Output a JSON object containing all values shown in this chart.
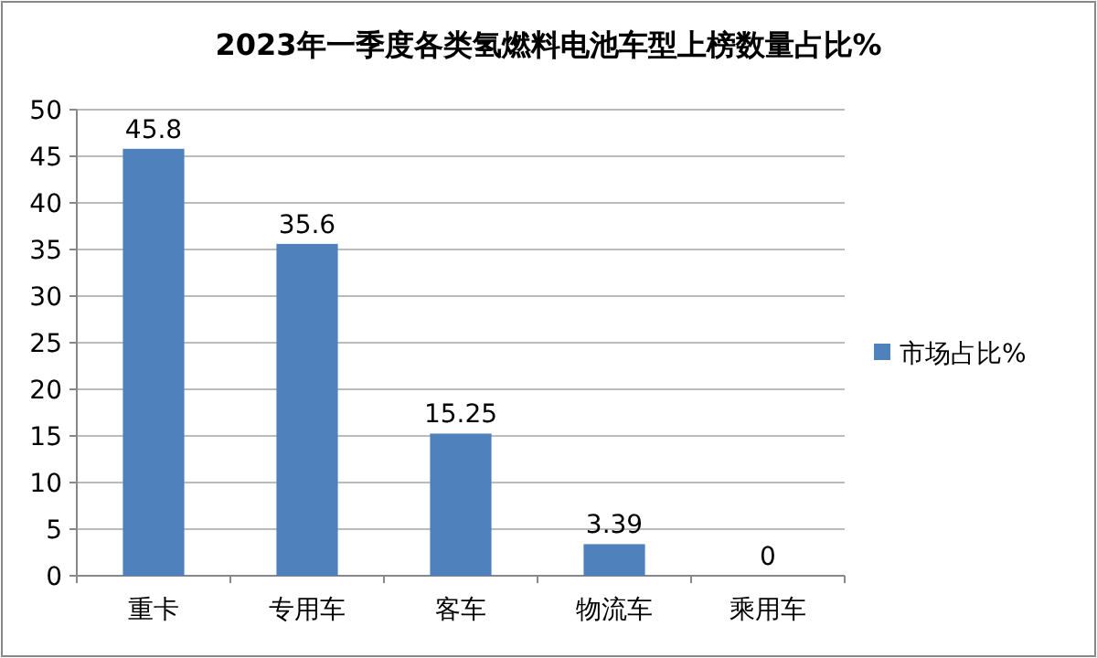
{
  "chart_data": {
    "type": "bar",
    "title": "2023年一季度各类氢燃料电池车型上榜数量占比%",
    "categories": [
      "重卡",
      "专用车",
      "客车",
      "物流车",
      "乘用车"
    ],
    "series": [
      {
        "name": "市场占比%",
        "color": "#4f81bd",
        "values": [
          45.8,
          35.6,
          15.25,
          3.39,
          0
        ]
      }
    ],
    "ylim": [
      0,
      50
    ],
    "yticks": [
      0,
      5,
      10,
      15,
      20,
      25,
      30,
      35,
      40,
      45,
      50
    ],
    "grid": "y",
    "legend": "right",
    "data_labels": true
  }
}
